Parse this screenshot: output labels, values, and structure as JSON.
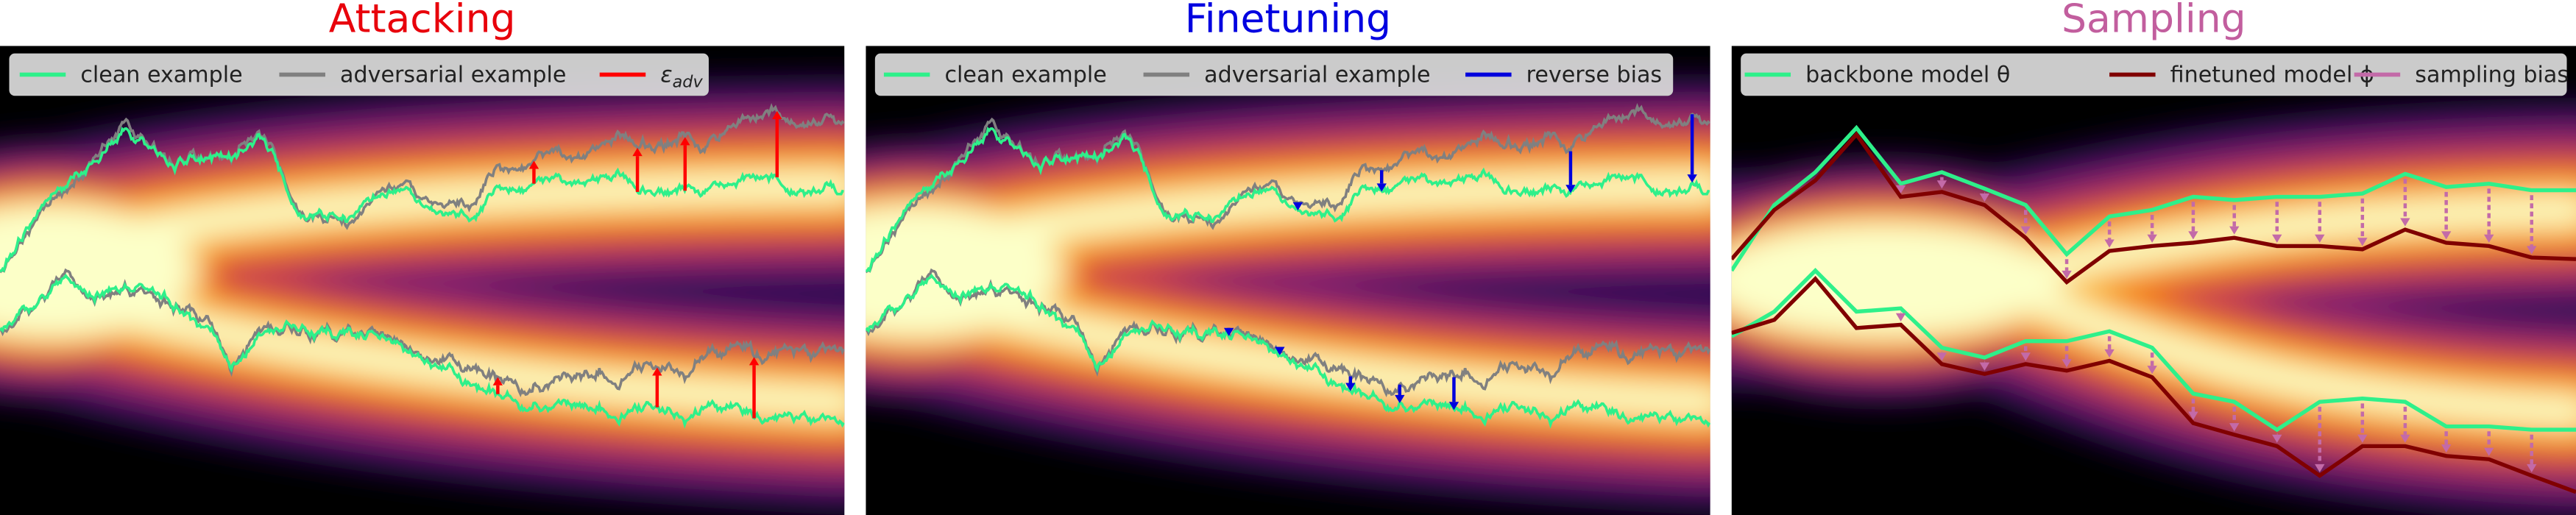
{
  "panels": [
    {
      "title": "Attacking",
      "title_color": "#e8000b",
      "legend": [
        {
          "label": "clean example",
          "color": "#2ef08a"
        },
        {
          "label": "adversarial example",
          "color": "#808080"
        },
        {
          "label": "ε",
          "sub": "adv",
          "color": "#ff0000"
        }
      ]
    },
    {
      "title": "Finetuning",
      "title_color": "#0000e0",
      "legend": [
        {
          "label": "clean example",
          "color": "#2ef08a"
        },
        {
          "label": "adversarial example",
          "color": "#808080"
        },
        {
          "label": "reverse bias",
          "color": "#0000dd"
        }
      ]
    },
    {
      "title": "Sampling",
      "title_color": "#c25e9e",
      "legend": [
        {
          "label": "backbone model θ",
          "color": "#2ef08a"
        },
        {
          "label": "finetuned model ϕ",
          "color": "#800000"
        },
        {
          "label": "sampling bias",
          "color": "#c36aa8"
        }
      ]
    }
  ]
}
